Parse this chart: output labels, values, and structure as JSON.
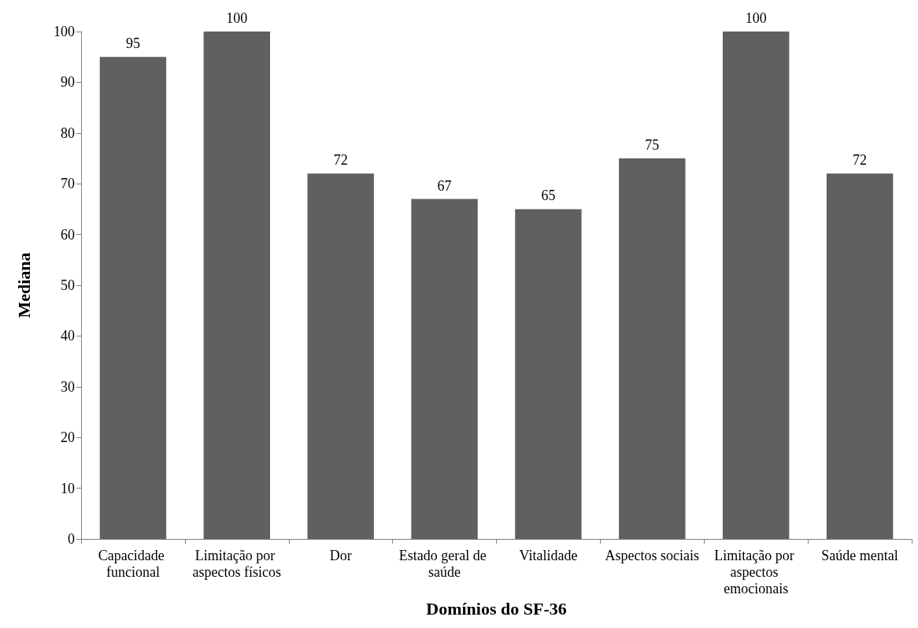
{
  "chart_data": {
    "type": "bar",
    "xlabel": "Domínios do SF-36",
    "ylabel": "Mediana",
    "categories": [
      "Capacidade funcional",
      "Limitação por aspectos físicos",
      "Dor",
      "Estado geral de saúde",
      "Vitalidade",
      "Aspectos sociais",
      "Limitação por aspectos emocionais",
      "Saúde mental"
    ],
    "values": [
      95,
      100,
      72,
      67,
      65,
      75,
      100,
      72
    ],
    "color": "#606060",
    "ylim": [
      0,
      100
    ],
    "yticks": [
      0,
      10,
      20,
      30,
      40,
      50,
      60,
      70,
      80,
      90,
      100
    ],
    "grid": false,
    "data_labels": true
  }
}
